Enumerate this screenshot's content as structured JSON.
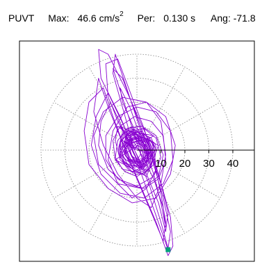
{
  "header": {
    "station": "PUVT",
    "max_label": "Max:",
    "max_value": "46.6 cm/s",
    "max_exp": "2",
    "per_label": "Per:",
    "per_value": "0.130 s",
    "ang_label": "Ang:",
    "ang_value": "-71.8"
  },
  "colors": {
    "trace": "#8800d0",
    "end_marker": "#00a07a",
    "grid": "#808080",
    "frame": "#000000"
  },
  "chart_data": {
    "type": "scatter",
    "description_type": "polar particle-motion trace",
    "radial_ticks": [
      10,
      20,
      30,
      40
    ],
    "radial_range": [
      0,
      48
    ],
    "grid": true,
    "grid_rings": [
      10,
      20,
      30,
      40
    ],
    "grid_spokes_deg": [
      0,
      30,
      60,
      90,
      120,
      150,
      180,
      210,
      240,
      270,
      300,
      330
    ],
    "end_point": {
      "x": 13.0,
      "y": -41.5
    },
    "trace_points": [
      [
        0,
        0
      ],
      [
        -6,
        4
      ],
      [
        5,
        -2
      ],
      [
        -3,
        8
      ],
      [
        7,
        6
      ],
      [
        -9,
        -4
      ],
      [
        4,
        -11
      ],
      [
        9,
        2
      ],
      [
        -7,
        10
      ],
      [
        2,
        -8
      ],
      [
        -12,
        22
      ],
      [
        -13,
        36
      ],
      [
        -8,
        38
      ],
      [
        -2,
        22
      ],
      [
        3,
        9
      ],
      [
        7,
        -4
      ],
      [
        10,
        -18
      ],
      [
        12,
        -30
      ],
      [
        11,
        -38
      ],
      [
        6,
        -26
      ],
      [
        0,
        -12
      ],
      [
        -6,
        3
      ],
      [
        -12,
        18
      ],
      [
        -16,
        30
      ],
      [
        -18,
        16
      ],
      [
        -14,
        2
      ],
      [
        -8,
        -10
      ],
      [
        0,
        -20
      ],
      [
        6,
        -24
      ],
      [
        10,
        -14
      ],
      [
        12,
        -2
      ],
      [
        10,
        12
      ],
      [
        4,
        20
      ],
      [
        -4,
        18
      ],
      [
        -10,
        8
      ],
      [
        -12,
        -4
      ],
      [
        -8,
        -14
      ],
      [
        -2,
        -20
      ],
      [
        4,
        -16
      ],
      [
        8,
        -8
      ],
      [
        7,
        2
      ],
      [
        2,
        8
      ],
      [
        -4,
        6
      ],
      [
        -7,
        0
      ],
      [
        -5,
        -6
      ],
      [
        0,
        -9
      ],
      [
        4,
        -6
      ],
      [
        5,
        0
      ],
      [
        2,
        4
      ],
      [
        -2,
        3
      ],
      [
        -15,
        30
      ],
      [
        -16,
        42
      ],
      [
        -12,
        40
      ],
      [
        -4,
        24
      ],
      [
        4,
        6
      ],
      [
        9,
        -10
      ],
      [
        14,
        -28
      ],
      [
        15,
        -40
      ],
      [
        13,
        -44
      ],
      [
        8,
        -30
      ],
      [
        2,
        -16
      ],
      [
        -4,
        -2
      ],
      [
        -10,
        14
      ],
      [
        -14,
        26
      ],
      [
        -20,
        20
      ],
      [
        -22,
        8
      ],
      [
        -20,
        -6
      ],
      [
        -12,
        -16
      ],
      [
        -2,
        -22
      ],
      [
        8,
        -20
      ],
      [
        14,
        -10
      ],
      [
        16,
        2
      ],
      [
        12,
        14
      ],
      [
        4,
        20
      ],
      [
        -6,
        22
      ],
      [
        -14,
        16
      ],
      [
        -18,
        6
      ],
      [
        -16,
        -6
      ],
      [
        -8,
        -14
      ],
      [
        2,
        -16
      ],
      [
        9,
        -11
      ],
      [
        11,
        -2
      ],
      [
        8,
        6
      ],
      [
        2,
        10
      ],
      [
        -4,
        9
      ],
      [
        -8,
        4
      ],
      [
        -9,
        -3
      ],
      [
        -6,
        -8
      ],
      [
        -1,
        -9
      ],
      [
        3,
        -6
      ],
      [
        -8,
        28
      ],
      [
        -10,
        34
      ],
      [
        -6,
        30
      ],
      [
        0,
        14
      ],
      [
        6,
        -2
      ],
      [
        10,
        -14
      ],
      [
        13,
        -26
      ],
      [
        12,
        -34
      ],
      [
        9,
        -22
      ],
      [
        4,
        -10
      ],
      [
        -2,
        2
      ],
      [
        -8,
        12
      ],
      [
        -11,
        20
      ],
      [
        -15,
        12
      ],
      [
        -16,
        2
      ],
      [
        -12,
        -8
      ],
      [
        -5,
        -14
      ],
      [
        3,
        -16
      ],
      [
        9,
        -12
      ],
      [
        12,
        -4
      ],
      [
        11,
        6
      ],
      [
        6,
        12
      ],
      [
        -1,
        14
      ],
      [
        -7,
        10
      ],
      [
        -10,
        4
      ],
      [
        -9,
        -4
      ],
      [
        -5,
        -9
      ],
      [
        0,
        -11
      ],
      [
        5,
        -8
      ],
      [
        7,
        -2
      ],
      [
        5,
        4
      ],
      [
        1,
        6
      ],
      [
        -3,
        4
      ],
      [
        -5,
        0
      ],
      [
        -3,
        -4
      ],
      [
        1,
        -5
      ],
      [
        3,
        -3
      ],
      [
        2,
        1
      ],
      [
        0,
        2
      ],
      [
        -1,
        0
      ],
      [
        -10,
        32
      ],
      [
        -9,
        40
      ],
      [
        -5,
        28
      ],
      [
        1,
        10
      ],
      [
        7,
        -6
      ],
      [
        11,
        -20
      ],
      [
        14,
        -34
      ],
      [
        13,
        -41
      ],
      [
        10,
        -30
      ],
      [
        5,
        -14
      ],
      [
        -1,
        0
      ],
      [
        -7,
        14
      ],
      [
        -12,
        24
      ],
      [
        -17,
        14
      ],
      [
        -19,
        2
      ],
      [
        -15,
        -10
      ],
      [
        -7,
        -18
      ],
      [
        3,
        -20
      ],
      [
        11,
        -14
      ],
      [
        15,
        -4
      ],
      [
        14,
        8
      ],
      [
        8,
        16
      ],
      [
        0,
        18
      ],
      [
        -8,
        14
      ],
      [
        -13,
        6
      ],
      [
        -13,
        -4
      ],
      [
        -8,
        -12
      ],
      [
        0,
        -15
      ],
      [
        7,
        -11
      ],
      [
        10,
        -3
      ],
      [
        8,
        5
      ],
      [
        3,
        9
      ],
      [
        -3,
        8
      ],
      [
        -7,
        3
      ],
      [
        -7,
        -3
      ],
      [
        -3,
        -7
      ],
      [
        2,
        -7
      ],
      [
        5,
        -3
      ],
      [
        4,
        2
      ],
      [
        1,
        4
      ],
      [
        -6,
        20
      ],
      [
        -7,
        26
      ],
      [
        -3,
        18
      ],
      [
        2,
        4
      ],
      [
        7,
        -10
      ],
      [
        10,
        -22
      ],
      [
        12,
        -32
      ],
      [
        11,
        -24
      ],
      [
        7,
        -12
      ],
      [
        2,
        -2
      ],
      [
        -3,
        6
      ],
      [
        -8,
        10
      ],
      [
        -9,
        4
      ],
      [
        -7,
        -4
      ],
      [
        -2,
        -9
      ],
      [
        3,
        -10
      ],
      [
        7,
        -6
      ],
      [
        8,
        0
      ],
      [
        6,
        5
      ],
      [
        2,
        7
      ],
      [
        -2,
        6
      ],
      [
        -5,
        2
      ],
      [
        -5,
        -2
      ],
      [
        -2,
        -5
      ],
      [
        2,
        -5
      ],
      [
        4,
        -2
      ],
      [
        3,
        2
      ],
      [
        0,
        3
      ],
      [
        -2,
        1
      ],
      [
        13,
        -41.5
      ]
    ]
  }
}
